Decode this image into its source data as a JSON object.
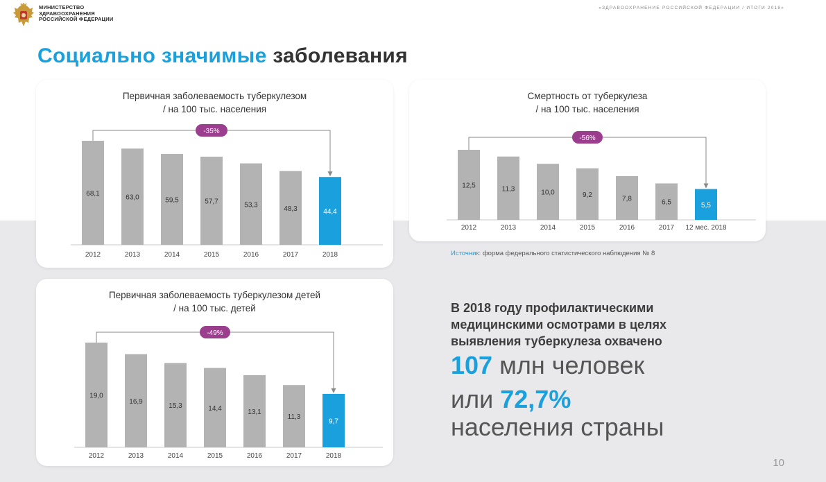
{
  "header": {
    "ministry_lines": [
      "МИНИСТЕРСТВО",
      "ЗДРАВООХРАНЕНИЯ",
      "РОССИЙСКОЙ ФЕДЕРАЦИИ"
    ],
    "caption": "«ЗДРАВООХРАНЕНИЕ РОССИЙСКОЙ ФЕДЕРАЦИИ / ИТОГИ 2018»"
  },
  "title": {
    "accent": "Социально значимые",
    "rest": "заболевания"
  },
  "colors": {
    "accent": "#1aa0dc",
    "bar": "#b3b3b3",
    "badge": "#9b3e8e"
  },
  "chart_data": [
    {
      "type": "bar",
      "title": "Первичная заболеваемость туберкулезом",
      "subtitle": "/ на 100 тыс. населения",
      "categories": [
        "2012",
        "2013",
        "2014",
        "2015",
        "2016",
        "2017",
        "2018"
      ],
      "values": [
        68.1,
        63.0,
        59.5,
        57.7,
        53.3,
        48.3,
        44.4
      ],
      "labels": [
        "68,1",
        "63,0",
        "59,5",
        "57,7",
        "53,3",
        "48,3",
        "44,4"
      ],
      "highlight_index": 6,
      "change_label": "-35%"
    },
    {
      "type": "bar",
      "title": "Смертность от туберкулеза",
      "subtitle": "/ на 100 тыс. населения",
      "categories": [
        "2012",
        "2013",
        "2014",
        "2015",
        "2016",
        "2017",
        "12 мес. 2018"
      ],
      "values": [
        12.5,
        11.3,
        10.0,
        9.2,
        7.8,
        6.5,
        5.5
      ],
      "labels": [
        "12,5",
        "11,3",
        "10,0",
        "9,2",
        "7,8",
        "6,5",
        "5,5"
      ],
      "highlight_index": 6,
      "change_label": "-56%"
    },
    {
      "type": "bar",
      "title": "Первичная заболеваемость туберкулезом детей",
      "subtitle": "/ на 100 тыс. детей",
      "categories": [
        "2012",
        "2013",
        "2014",
        "2015",
        "2016",
        "2017",
        "2018"
      ],
      "values": [
        19.0,
        16.9,
        15.3,
        14.4,
        13.1,
        11.3,
        9.7
      ],
      "labels": [
        "19,0",
        "16,9",
        "15,3",
        "14,4",
        "13,1",
        "11,3",
        "9,7"
      ],
      "highlight_index": 6,
      "change_label": "-49%"
    }
  ],
  "source": {
    "label": "Источник:",
    "text": "форма федерального статистического наблюдения № 8"
  },
  "promo": {
    "text": "В 2018 году профилактическими медицинскими осмотрами в целях выявления туберкулеза охвачено",
    "number1": "107",
    "unit1": "млн человек",
    "prefix2": "или",
    "number2": "72,7%",
    "line3": "населения страны"
  },
  "page_number": "10"
}
